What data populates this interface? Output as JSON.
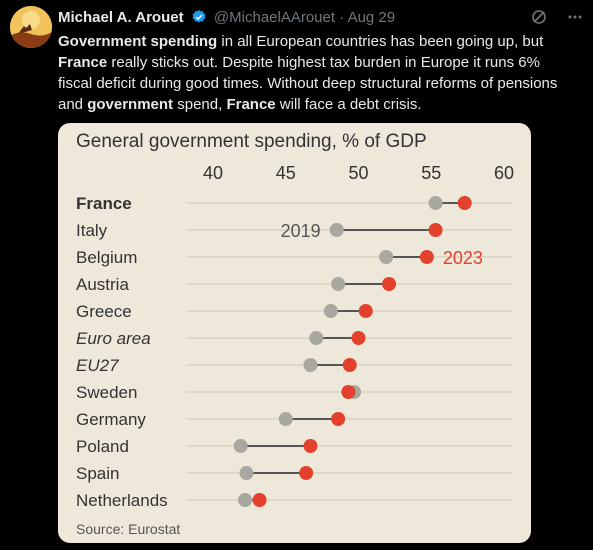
{
  "tweet": {
    "author_name": "Michael A. Arouet",
    "handle": "@MichaelAArouet",
    "separator": "·",
    "date": "Aug 29",
    "icons": [
      "grok-icon",
      "more-icon"
    ],
    "text_segments": [
      {
        "text": "Government spending",
        "bold": true
      },
      {
        "text": " in all European countries has been going up, but ",
        "bold": false
      },
      {
        "text": "France",
        "bold": true
      },
      {
        "text": " really sticks out. Despite highest tax burden in Europe it runs 6% fiscal deficit during good times. Without deep structural reforms of pensions and ",
        "bold": false
      },
      {
        "text": "government",
        "bold": true
      },
      {
        "text": " spend, ",
        "bold": false
      },
      {
        "text": "France",
        "bold": true
      },
      {
        "text": " will face a debt crisis.",
        "bold": false
      }
    ]
  },
  "chart_data": {
    "type": "scatter",
    "title": "General government spending, % of GDP",
    "source": "Source: Eurostat",
    "xlim": [
      40,
      60
    ],
    "xticks": [
      "40",
      "45",
      "50",
      "55",
      "60"
    ],
    "grid": true,
    "categories": [
      "France",
      "Italy",
      "Belgium",
      "Austria",
      "Greece",
      "Euro area",
      "EU27",
      "Sweden",
      "Germany",
      "Poland",
      "Spain",
      "Netherlands"
    ],
    "category_styles": [
      "bold",
      "normal",
      "normal",
      "normal",
      "normal",
      "italic",
      "italic",
      "normal",
      "normal",
      "normal",
      "normal",
      "normal"
    ],
    "series": [
      {
        "name": "2019",
        "color": "#a8a8a0",
        "values": [
          55.3,
          48.5,
          51.9,
          48.6,
          48.1,
          47.1,
          46.7,
          49.7,
          45.0,
          41.9,
          42.3,
          42.2
        ]
      },
      {
        "name": "2023",
        "color": "#e3412d",
        "values": [
          57.3,
          55.3,
          54.7,
          52.1,
          50.5,
          50.0,
          49.4,
          49.3,
          48.6,
          46.7,
          46.4,
          43.2
        ]
      }
    ],
    "annotations": [
      {
        "text": "2019",
        "series": "2019",
        "category": "Italy"
      },
      {
        "text": "2023",
        "series": "2023",
        "category": "Belgium"
      }
    ]
  },
  "colors": {
    "background": "#000000",
    "card": "#ede8d9",
    "series_2019": "#a8a8a0",
    "series_2023": "#e3412d",
    "verified": "#1d9bf0"
  }
}
